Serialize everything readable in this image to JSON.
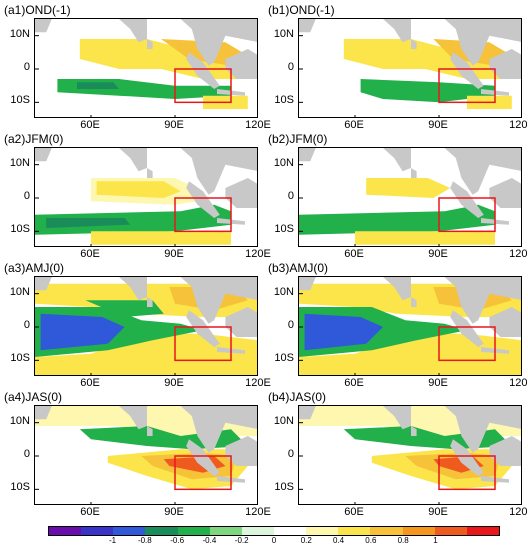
{
  "panels": [
    {
      "title": "(a1)OND(-1)",
      "pattern": "a1"
    },
    {
      "title": "(b1)OND(-1)",
      "pattern": "b1"
    },
    {
      "title": "(a2)JFM(0)",
      "pattern": "a2"
    },
    {
      "title": "(b2)JFM(0)",
      "pattern": "b2"
    },
    {
      "title": "(a3)AMJ(0)",
      "pattern": "a3"
    },
    {
      "title": "(b3)AMJ(0)",
      "pattern": "b3"
    },
    {
      "title": "(a4)JAS(0)",
      "pattern": "a4"
    },
    {
      "title": "(b4)JAS(0)",
      "pattern": "b4"
    }
  ],
  "axes": {
    "y_ticks": [
      "10N",
      "0",
      "10S"
    ],
    "x_ticks": [
      "60E",
      "90E",
      "120E"
    ]
  },
  "colorbar": {
    "labels": [
      "-1",
      "-0.8",
      "-0.6",
      "-0.4",
      "-0.2",
      "0",
      "0.2",
      "0.4",
      "0.6",
      "0.8",
      "1"
    ],
    "colors": [
      "#6a0dad",
      "#3a33c7",
      "#2f59d9",
      "#1a8c5a",
      "#22b04b",
      "#7fd67f",
      "#ddf5dd",
      "#ffffff",
      "#fdf7b0",
      "#fbe54a",
      "#f6c23a",
      "#f3971e",
      "#ef5a1f",
      "#e8171b"
    ]
  },
  "map_colors": {
    "land": "#c8c8c8",
    "box": "#e8171b",
    "green": "#22b04b",
    "dark_green": "#1a8c5a",
    "blue": "#2f59d9",
    "yellow": "#fbe54a",
    "orange": "#f6c23a",
    "red": "#ef5a1f",
    "light_yellow": "#fdf7b0"
  }
}
